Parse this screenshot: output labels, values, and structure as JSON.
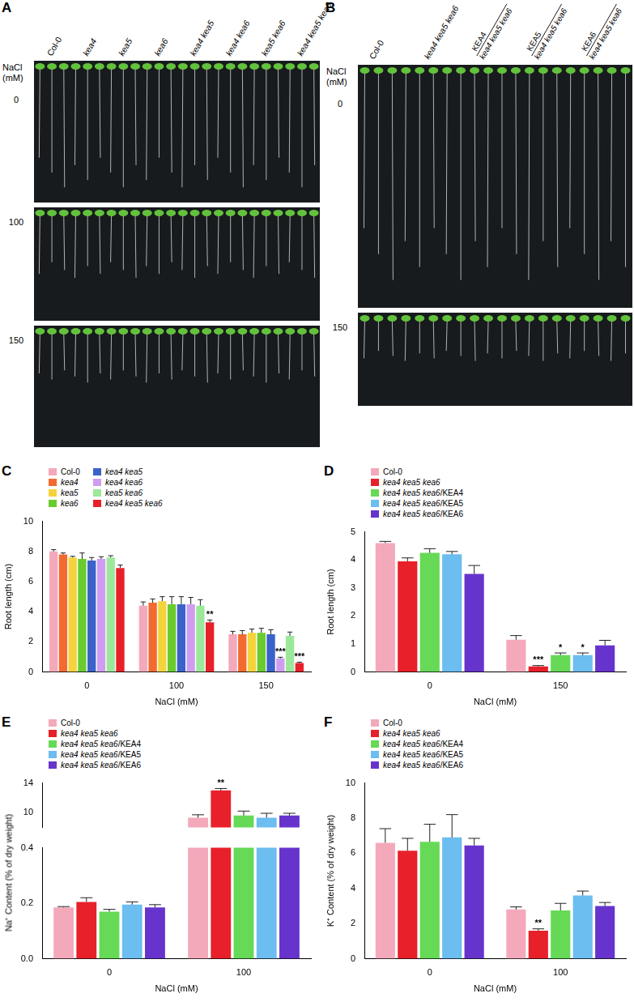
{
  "photo_panels": [
    {
      "panel": "A",
      "row_title": [
        "NaCl",
        "(mM)"
      ],
      "rows": [
        "0",
        "100",
        "150"
      ],
      "columns": [
        {
          "label": "Col-0"
        },
        {
          "label": "kea4"
        },
        {
          "label": "kea5"
        },
        {
          "label": "kea6"
        },
        {
          "label": "kea4 kea5"
        },
        {
          "label": "kea4 kea6"
        },
        {
          "label": "kea5 kea6"
        },
        {
          "label": "kea4 kea5 kea6"
        }
      ]
    },
    {
      "panel": "B",
      "row_title": [
        "NaCl",
        "(mM)"
      ],
      "rows": [
        "0",
        "150"
      ],
      "columns": [
        {
          "label": "Col-0"
        },
        {
          "label": "kea4 kea5 kea6"
        },
        {
          "transgene": "KEA4",
          "background": "kea4 kea5 kea6"
        },
        {
          "transgene": "KEA5",
          "background": "kea4 kea5 kea6"
        },
        {
          "transgene": "KEA6",
          "background": "kea4 kea5 kea6"
        }
      ]
    }
  ],
  "chart_data": [
    {
      "panel": "C",
      "type": "bar",
      "x_label": "NaCl (mM)",
      "y_label": "Root length (cm)",
      "categories": [
        "0",
        "100",
        "150"
      ],
      "ylim": [
        0,
        10
      ],
      "yticks": [
        0,
        2,
        4,
        6,
        8,
        10
      ],
      "grid": false,
      "legend": "upper left",
      "series": [
        {
          "name": "Col-0",
          "color": "#f4a9bb",
          "values": [
            8.0,
            4.4,
            2.5
          ],
          "errors": [
            0.12,
            0.25,
            0.2
          ],
          "significance": [
            null,
            null,
            null
          ]
        },
        {
          "name": "kea4",
          "color": "#f26a30",
          "values": [
            7.8,
            4.6,
            2.5
          ],
          "errors": [
            0.1,
            0.25,
            0.25
          ],
          "significance": [
            null,
            null,
            null
          ]
        },
        {
          "name": "kea5",
          "color": "#f5d33c",
          "values": [
            7.6,
            4.7,
            2.6
          ],
          "errors": [
            0.08,
            0.3,
            0.25
          ],
          "significance": [
            null,
            null,
            null
          ]
        },
        {
          "name": "kea6",
          "color": "#6acb2e",
          "values": [
            7.5,
            4.5,
            2.6
          ],
          "errors": [
            0.4,
            0.5,
            0.3
          ],
          "significance": [
            null,
            null,
            null
          ]
        },
        {
          "name": "kea4 kea5",
          "color": "#3a62c9",
          "values": [
            7.4,
            4.5,
            2.5
          ],
          "errors": [
            0.2,
            0.5,
            0.3
          ],
          "significance": [
            null,
            null,
            null
          ]
        },
        {
          "name": "kea4 kea6",
          "color": "#cf9df0",
          "values": [
            7.5,
            4.5,
            0.9
          ],
          "errors": [
            0.15,
            0.45,
            0.08
          ],
          "significance": [
            null,
            null,
            "***"
          ]
        },
        {
          "name": "kea5 kea6",
          "color": "#9be89b",
          "values": [
            7.6,
            4.4,
            2.4
          ],
          "errors": [
            0.12,
            0.4,
            0.25
          ],
          "significance": [
            null,
            null,
            null
          ]
        },
        {
          "name": "kea4 kea5 kea6",
          "color": "#e8202a",
          "values": [
            6.9,
            3.3,
            0.6
          ],
          "errors": [
            0.2,
            0.15,
            0.05
          ],
          "significance": [
            null,
            "**",
            "***"
          ]
        }
      ]
    },
    {
      "panel": "D",
      "type": "bar",
      "x_label": "NaCl (mM)",
      "y_label": "Root length (cm)",
      "categories": [
        "0",
        "150"
      ],
      "ylim": [
        0,
        5
      ],
      "yticks": [
        0,
        1,
        2,
        3,
        4,
        5
      ],
      "grid": false,
      "legend": "upper left",
      "series": [
        {
          "name": "Col-0",
          "color": "#f4a9bb",
          "values": [
            4.6,
            1.15
          ],
          "errors": [
            0.06,
            0.15
          ],
          "significance": [
            null,
            null
          ]
        },
        {
          "name": "kea4 kea5 kea6",
          "color": "#e8202a",
          "values": [
            3.95,
            0.2
          ],
          "errors": [
            0.12,
            0.03
          ],
          "significance": [
            null,
            "***"
          ]
        },
        {
          "name": "kea4 kea5 kea6/KEA4",
          "color": "#66d957",
          "values": [
            4.25,
            0.6
          ],
          "errors": [
            0.15,
            0.08
          ],
          "significance": [
            null,
            "*"
          ]
        },
        {
          "name": "kea4 kea5 kea6/KEA5",
          "color": "#6cbdf0",
          "values": [
            4.2,
            0.6
          ],
          "errors": [
            0.1,
            0.08
          ],
          "significance": [
            null,
            "*"
          ]
        },
        {
          "name": "kea4 kea5 kea6/KEA6",
          "color": "#6634cc",
          "values": [
            3.5,
            0.95
          ],
          "errors": [
            0.3,
            0.18
          ],
          "significance": [
            null,
            null
          ]
        }
      ]
    },
    {
      "panel": "E",
      "type": "bar",
      "x_label": "NaCl (mM)",
      "y_label": "Na⁺ Content (% of dry weight)",
      "categories": [
        "0",
        "100"
      ],
      "y_segments": [
        {
          "ylim": [
            8,
            14
          ],
          "yticks": [
            10,
            14
          ]
        },
        {
          "ylim": [
            0,
            0.4
          ],
          "yticks": [
            {
              "value": 0,
              "label": "0.0"
            },
            0.2,
            0.4
          ]
        }
      ],
      "grid": false,
      "legend": "upper left",
      "series": [
        {
          "name": "Col-0",
          "color": "#f4a9bb",
          "values": [
            0.185,
            9.3
          ],
          "errors": [
            0.003,
            0.4
          ],
          "significance": [
            null,
            null
          ]
        },
        {
          "name": "kea4 kea5 kea6",
          "color": "#e8202a",
          "values": [
            0.205,
            13.0
          ],
          "errors": [
            0.015,
            0.25
          ],
          "significance": [
            null,
            "**"
          ]
        },
        {
          "name": "kea4 kea5 kea6/KEA4",
          "color": "#66d957",
          "values": [
            0.17,
            9.6
          ],
          "errors": [
            0.008,
            0.6
          ],
          "significance": [
            null,
            null
          ]
        },
        {
          "name": "kea4 kea5 kea6/KEA5",
          "color": "#6cbdf0",
          "values": [
            0.195,
            9.3
          ],
          "errors": [
            0.01,
            0.6
          ],
          "significance": [
            null,
            null
          ]
        },
        {
          "name": "kea4 kea5 kea6/KEA6",
          "color": "#6634cc",
          "values": [
            0.185,
            9.6
          ],
          "errors": [
            0.01,
            0.3
          ],
          "significance": [
            null,
            null
          ]
        }
      ]
    },
    {
      "panel": "F",
      "type": "bar",
      "x_label": "NaCl (mM)",
      "y_label": "K⁺ Content (% of dry weight)",
      "categories": [
        "0",
        "100"
      ],
      "ylim": [
        0,
        10
      ],
      "yticks": [
        0,
        2,
        4,
        6,
        8,
        10
      ],
      "grid": false,
      "legend": "upper left",
      "series": [
        {
          "name": "Col-0",
          "color": "#f4a9bb",
          "values": [
            6.6,
            2.8
          ],
          "errors": [
            0.8,
            0.15
          ],
          "significance": [
            null,
            null
          ]
        },
        {
          "name": "kea4 kea5 kea6",
          "color": "#e8202a",
          "values": [
            6.15,
            1.6
          ],
          "errors": [
            0.7,
            0.1
          ],
          "significance": [
            null,
            "**"
          ]
        },
        {
          "name": "kea4 kea5 kea6/KEA4",
          "color": "#66d957",
          "values": [
            6.65,
            2.75
          ],
          "errors": [
            1.0,
            0.4
          ],
          "significance": [
            null,
            null
          ]
        },
        {
          "name": "kea4 kea5 kea6/KEA5",
          "color": "#6cbdf0",
          "values": [
            6.9,
            3.6
          ],
          "errors": [
            1.3,
            0.25
          ],
          "significance": [
            null,
            null
          ]
        },
        {
          "name": "kea4 kea5 kea6/KEA6",
          "color": "#6634cc",
          "values": [
            6.45,
            3.0
          ],
          "errors": [
            0.4,
            0.2
          ],
          "significance": [
            null,
            null
          ]
        }
      ]
    }
  ]
}
